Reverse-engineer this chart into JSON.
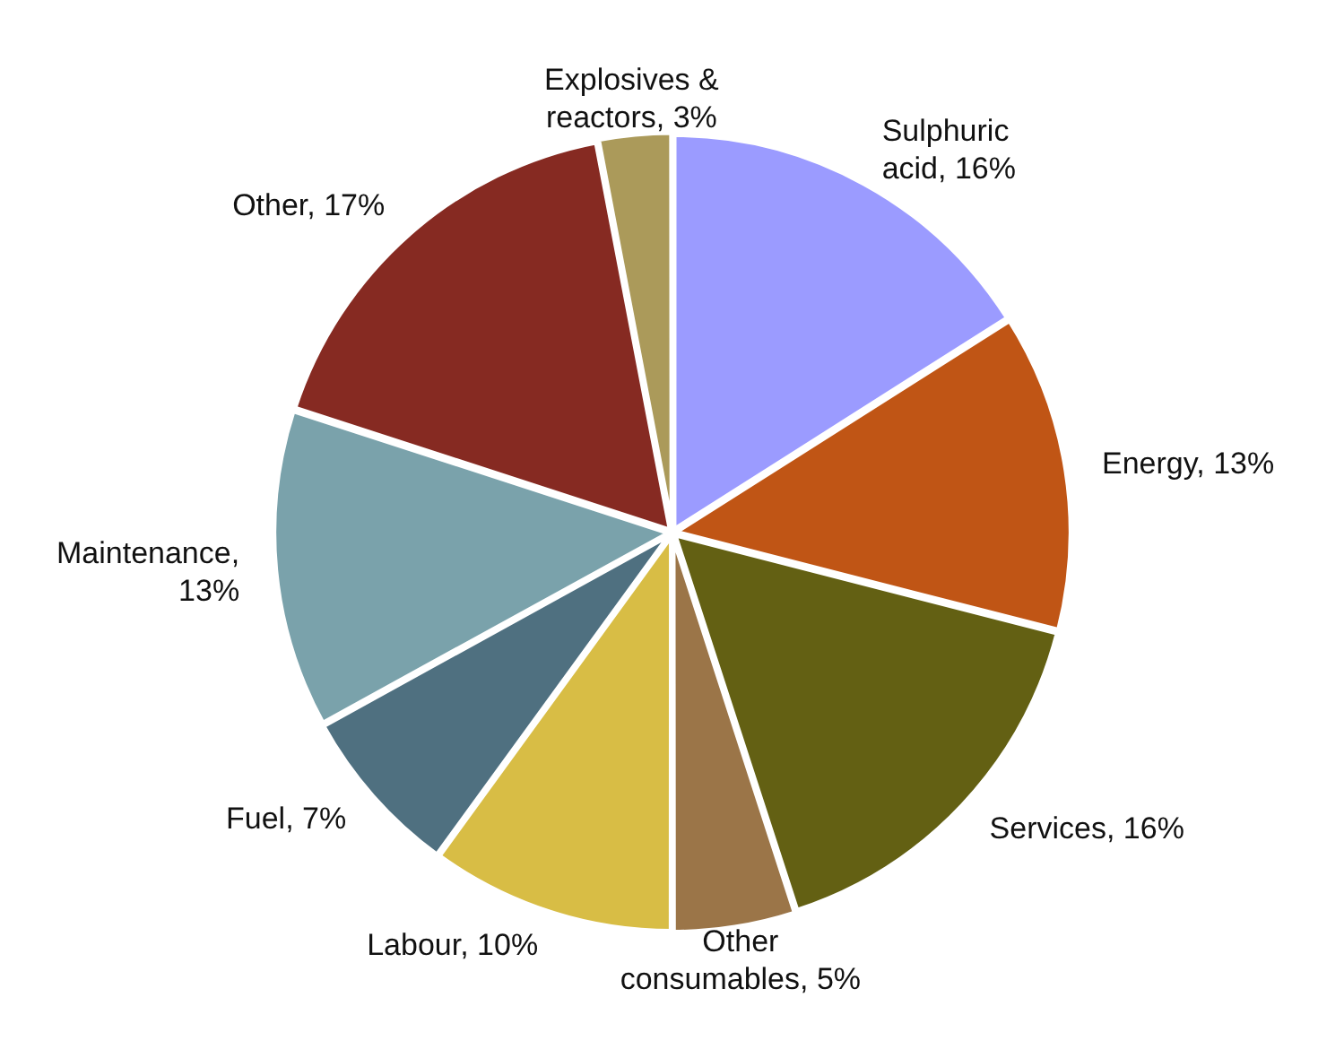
{
  "chart_data": {
    "type": "pie",
    "categories": [
      "Sulphuric acid, 16%",
      "Energy, 13%",
      "Services, 16%",
      "Other consumables, 5%",
      "Labour, 10%",
      "Fuel, 7%",
      "Maintenance, 13%",
      "Other, 17%",
      "Explosives & reactors, 3%"
    ],
    "values": [
      16,
      13,
      16,
      5,
      10,
      7,
      13,
      17,
      3
    ],
    "colors": [
      "#9b9bff",
      "#c05515",
      "#636013",
      "#9b7548",
      "#d8bd45",
      "#4f7080",
      "#7aa2ab",
      "#862a22",
      "#ab9a5a"
    ],
    "legend": false
  }
}
